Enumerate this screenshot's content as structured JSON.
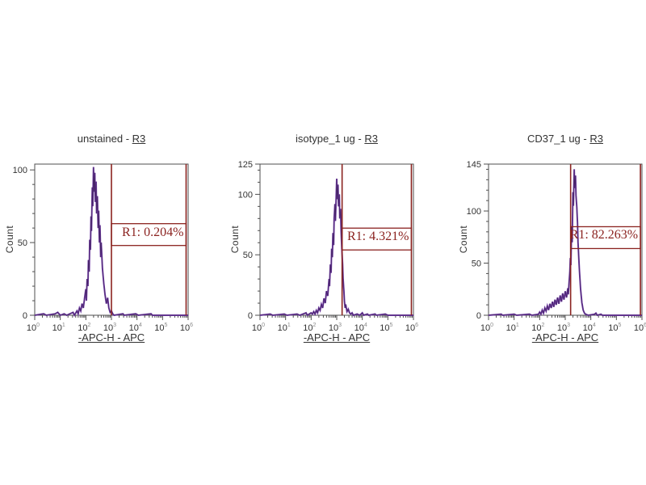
{
  "colors": {
    "background": "#ffffff",
    "frame": "#4f4f4f",
    "tick_text": "#333333",
    "superscript": "#8a8a8a",
    "gate": "#8b2320"
  },
  "chart_data": [
    {
      "type": "line",
      "title_prefix": "unstained - ",
      "title_region": "R3",
      "ylabel": "Count",
      "xlabel": "-APC-H - APC",
      "x_scale": "log10",
      "x_tick_base": "10",
      "x_tick_exponents": [
        0,
        1,
        2,
        3,
        4,
        5,
        6
      ],
      "ylim": [
        0,
        104
      ],
      "y_major_ticks": [
        0,
        50,
        100
      ],
      "y_minor_step": 10,
      "curve_color": "#7440a8",
      "curve_dark": "#472468",
      "gate": {
        "name": "R1",
        "percent": "0.204%",
        "label": "R1: 0.204%",
        "x_start_decade": 3.0,
        "x_end_decade": 5.92,
        "y_level_count": 48
      },
      "curve": [
        [
          0,
          0
        ],
        [
          0.35,
          1
        ],
        [
          0.45,
          0
        ],
        [
          0.8,
          1
        ],
        [
          0.9,
          2
        ],
        [
          1.0,
          0
        ],
        [
          1.15,
          1
        ],
        [
          1.25,
          0
        ],
        [
          1.5,
          2
        ],
        [
          1.55,
          0
        ],
        [
          1.65,
          3
        ],
        [
          1.7,
          1
        ],
        [
          1.75,
          5
        ],
        [
          1.8,
          3
        ],
        [
          1.85,
          8
        ],
        [
          1.9,
          5
        ],
        [
          1.95,
          12
        ],
        [
          2.0,
          18
        ],
        [
          2.02,
          10
        ],
        [
          2.05,
          25
        ],
        [
          2.08,
          20
        ],
        [
          2.1,
          38
        ],
        [
          2.13,
          30
        ],
        [
          2.15,
          52
        ],
        [
          2.18,
          45
        ],
        [
          2.2,
          68
        ],
        [
          2.22,
          58
        ],
        [
          2.25,
          88
        ],
        [
          2.27,
          75
        ],
        [
          2.3,
          102
        ],
        [
          2.32,
          85
        ],
        [
          2.35,
          98
        ],
        [
          2.37,
          78
        ],
        [
          2.4,
          92
        ],
        [
          2.42,
          70
        ],
        [
          2.45,
          82
        ],
        [
          2.48,
          60
        ],
        [
          2.5,
          72
        ],
        [
          2.53,
          50
        ],
        [
          2.55,
          62
        ],
        [
          2.58,
          40
        ],
        [
          2.6,
          50
        ],
        [
          2.65,
          32
        ],
        [
          2.7,
          22
        ],
        [
          2.75,
          14
        ],
        [
          2.8,
          8
        ],
        [
          2.85,
          12
        ],
        [
          2.9,
          5
        ],
        [
          2.95,
          2
        ],
        [
          3.0,
          3
        ],
        [
          3.05,
          1
        ],
        [
          3.1,
          0
        ],
        [
          3.45,
          1
        ],
        [
          3.5,
          0
        ],
        [
          3.95,
          1
        ],
        [
          4.05,
          0
        ],
        [
          4.55,
          1
        ],
        [
          4.6,
          0
        ],
        [
          5.5,
          0
        ],
        [
          6,
          0
        ]
      ]
    },
    {
      "type": "line",
      "title_prefix": "isotype_1 ug - ",
      "title_region": "R3",
      "ylabel": "Count",
      "xlabel": "-APC-H - APC",
      "x_scale": "log10",
      "x_tick_base": "10",
      "x_tick_exponents": [
        0,
        1,
        2,
        3,
        4,
        5,
        6
      ],
      "ylim": [
        0,
        125
      ],
      "y_major_ticks": [
        0,
        50,
        100,
        125
      ],
      "y_minor_step": 10,
      "curve_color": "#7440a8",
      "curve_dark": "#472468",
      "gate": {
        "name": "R1",
        "percent": "4.321%",
        "label": "R1: 4.321%",
        "x_start_decade": 3.21,
        "x_end_decade": 5.92,
        "y_level_count": 54
      },
      "curve": [
        [
          0,
          0
        ],
        [
          0.4,
          1
        ],
        [
          0.5,
          0
        ],
        [
          0.95,
          1
        ],
        [
          1.05,
          0
        ],
        [
          1.45,
          1
        ],
        [
          1.55,
          0
        ],
        [
          1.8,
          2
        ],
        [
          1.85,
          0
        ],
        [
          2.0,
          2
        ],
        [
          2.05,
          1
        ],
        [
          2.1,
          3
        ],
        [
          2.15,
          1
        ],
        [
          2.2,
          4
        ],
        [
          2.25,
          2
        ],
        [
          2.3,
          6
        ],
        [
          2.35,
          4
        ],
        [
          2.4,
          9
        ],
        [
          2.45,
          6
        ],
        [
          2.5,
          14
        ],
        [
          2.55,
          10
        ],
        [
          2.6,
          20
        ],
        [
          2.65,
          16
        ],
        [
          2.7,
          30
        ],
        [
          2.72,
          24
        ],
        [
          2.75,
          42
        ],
        [
          2.78,
          35
        ],
        [
          2.8,
          55
        ],
        [
          2.83,
          48
        ],
        [
          2.85,
          68
        ],
        [
          2.88,
          58
        ],
        [
          2.9,
          80
        ],
        [
          2.93,
          92
        ],
        [
          2.95,
          78
        ],
        [
          2.98,
          100
        ],
        [
          3.0,
          113
        ],
        [
          3.02,
          96
        ],
        [
          3.05,
          108
        ],
        [
          3.07,
          90
        ],
        [
          3.1,
          100
        ],
        [
          3.12,
          80
        ],
        [
          3.15,
          88
        ],
        [
          3.17,
          70
        ],
        [
          3.2,
          55
        ],
        [
          3.23,
          42
        ],
        [
          3.25,
          30
        ],
        [
          3.28,
          20
        ],
        [
          3.3,
          12
        ],
        [
          3.33,
          6
        ],
        [
          3.35,
          9
        ],
        [
          3.4,
          3
        ],
        [
          3.45,
          5
        ],
        [
          3.5,
          2
        ],
        [
          3.55,
          1
        ],
        [
          3.6,
          2
        ],
        [
          3.65,
          0
        ],
        [
          3.8,
          1
        ],
        [
          3.9,
          0
        ],
        [
          4.0,
          2
        ],
        [
          4.05,
          0
        ],
        [
          4.2,
          1
        ],
        [
          4.25,
          0
        ],
        [
          4.5,
          1
        ],
        [
          4.55,
          0
        ],
        [
          4.9,
          1
        ],
        [
          5.0,
          0
        ],
        [
          6,
          0
        ]
      ]
    },
    {
      "type": "line",
      "title_prefix": "CD37_1 ug - ",
      "title_region": "R3",
      "ylabel": "Count",
      "xlabel": "-APC-H - APC",
      "x_scale": "log10",
      "x_tick_base": "10",
      "x_tick_exponents": [
        0,
        1,
        2,
        3,
        4,
        5,
        6
      ],
      "ylim": [
        0,
        145
      ],
      "y_major_ticks": [
        0,
        50,
        100,
        145
      ],
      "y_minor_step": 10,
      "curve_color": "#7440a8",
      "curve_dark": "#472468",
      "gate": {
        "name": "R1",
        "percent": "82.263%",
        "label": "R1: 82.263%",
        "x_start_decade": 3.21,
        "x_end_decade": 5.94,
        "y_level_count": 64
      },
      "curve": [
        [
          0,
          0
        ],
        [
          0.5,
          1
        ],
        [
          0.55,
          0
        ],
        [
          1.0,
          1
        ],
        [
          1.1,
          0
        ],
        [
          1.6,
          1
        ],
        [
          1.7,
          0
        ],
        [
          1.95,
          1
        ],
        [
          2.0,
          3
        ],
        [
          2.05,
          1
        ],
        [
          2.1,
          5
        ],
        [
          2.15,
          2
        ],
        [
          2.2,
          7
        ],
        [
          2.25,
          4
        ],
        [
          2.3,
          9
        ],
        [
          2.35,
          5
        ],
        [
          2.4,
          11
        ],
        [
          2.45,
          7
        ],
        [
          2.5,
          13
        ],
        [
          2.55,
          8
        ],
        [
          2.6,
          15
        ],
        [
          2.65,
          10
        ],
        [
          2.7,
          17
        ],
        [
          2.75,
          11
        ],
        [
          2.8,
          19
        ],
        [
          2.85,
          13
        ],
        [
          2.9,
          21
        ],
        [
          2.95,
          15
        ],
        [
          3.0,
          23
        ],
        [
          3.05,
          17
        ],
        [
          3.1,
          26
        ],
        [
          3.12,
          20
        ],
        [
          3.15,
          32
        ],
        [
          3.18,
          42
        ],
        [
          3.2,
          55
        ],
        [
          3.22,
          48
        ],
        [
          3.25,
          85
        ],
        [
          3.27,
          70
        ],
        [
          3.3,
          118
        ],
        [
          3.32,
          105
        ],
        [
          3.35,
          140
        ],
        [
          3.37,
          122
        ],
        [
          3.4,
          134
        ],
        [
          3.42,
          115
        ],
        [
          3.45,
          104
        ],
        [
          3.48,
          88
        ],
        [
          3.5,
          70
        ],
        [
          3.55,
          45
        ],
        [
          3.6,
          25
        ],
        [
          3.65,
          12
        ],
        [
          3.7,
          5
        ],
        [
          3.75,
          2
        ],
        [
          3.8,
          1
        ],
        [
          3.9,
          0
        ],
        [
          4.15,
          1
        ],
        [
          4.2,
          2
        ],
        [
          4.25,
          0
        ],
        [
          4.4,
          1
        ],
        [
          4.45,
          0
        ],
        [
          5.0,
          0
        ],
        [
          6,
          0
        ]
      ]
    }
  ]
}
